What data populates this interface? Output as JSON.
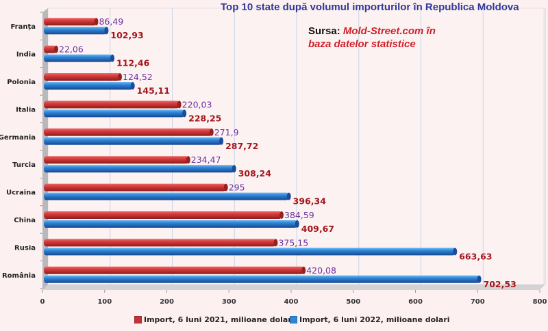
{
  "chart_data": {
    "type": "bar",
    "orientation": "horizontal",
    "title": "Top 10 state după volumul importurilor în Republica Moldova",
    "source_label": "Sursa:",
    "source_text_line1": "Mold-Street.com în",
    "source_text_line2": "baza datelor statistice",
    "categories": [
      "Franța",
      "India",
      "Polonia",
      "Italia",
      "Germania",
      "Turcia",
      "Ucraina",
      "China",
      "Rusia",
      "România"
    ],
    "series": [
      {
        "name": "Import, 6 luni 2021, milioane dolari",
        "color": "#d23b3b",
        "label_color": "#6a2fa0",
        "values": [
          86.49,
          22.06,
          124.52,
          220.03,
          271.9,
          234.47,
          295,
          384.59,
          375.15,
          420.08
        ],
        "labels": [
          "86,49",
          "22,06",
          "124,52",
          "220,03",
          "271,9",
          "234,47",
          "295",
          "384,59",
          "375,15",
          "420,08"
        ]
      },
      {
        "name": "Import, 6 luni 2022, milioane dolari",
        "color": "#2f86d8",
        "label_color": "#a3161c",
        "values": [
          102.93,
          112.46,
          145.11,
          228.25,
          287.72,
          308.24,
          396.34,
          409.67,
          663.63,
          702.53
        ],
        "labels": [
          "102,93",
          "112,46",
          "145,11",
          "228,25",
          "287,72",
          "308,24",
          "396,34",
          "409,67",
          "663,63",
          "702,53"
        ]
      }
    ],
    "xlim": [
      0,
      800
    ],
    "xticks": [
      0,
      100,
      200,
      300,
      400,
      500,
      600,
      700,
      800
    ],
    "xlabel": "",
    "ylabel": "",
    "grid": true,
    "legend_position": "bottom"
  }
}
